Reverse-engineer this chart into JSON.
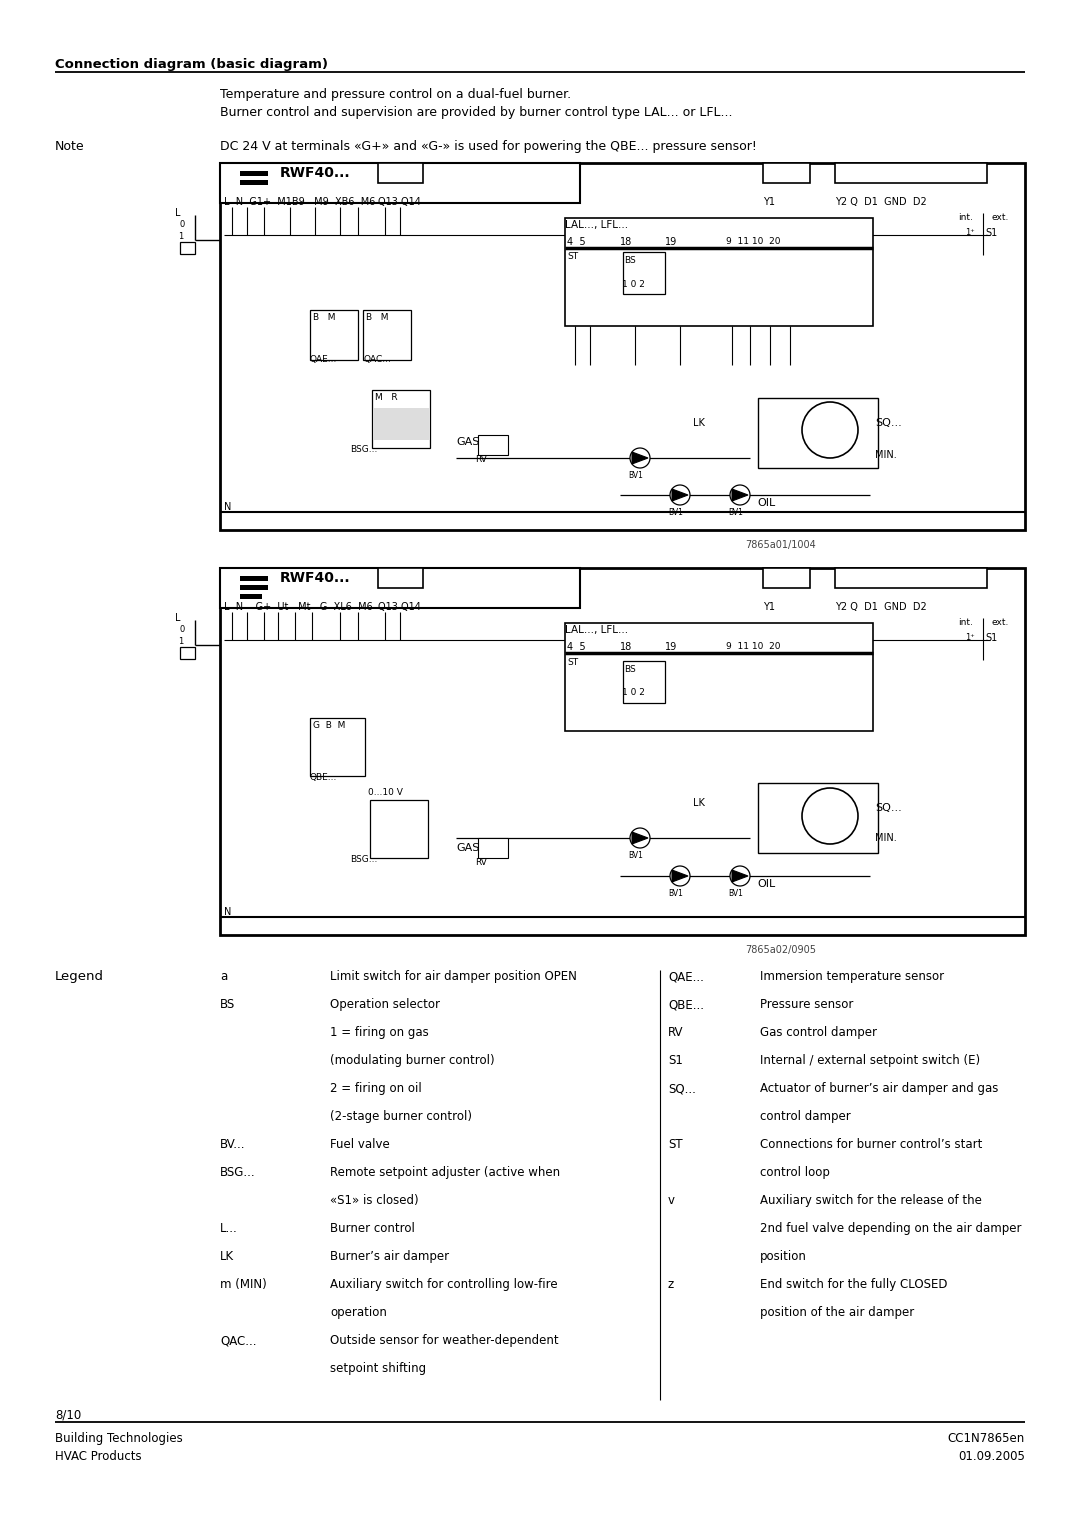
{
  "title": "Connection diagram (basic diagram)",
  "subtitle1": "Temperature and pressure control on a dual-fuel burner.",
  "subtitle2": "Burner control and supervision are provided by burner control type LAL... or LFL...",
  "note_label": "Note",
  "note_text": "DC 24 V at terminals «G+» and «G-» is used for powering the QBE... pressure sensor!",
  "legend_label": "Legend",
  "diagram1_title": "RWF40...",
  "diagram1_ref": "7865a01/1004",
  "diagram2_title": "RWF40...",
  "diagram2_ref": "7865a02/0905",
  "legend_entries_left": [
    [
      "a",
      "Limit switch for air damper position OPEN"
    ],
    [
      "BS",
      "Operation selector"
    ],
    [
      "",
      "1 = firing on gas"
    ],
    [
      "",
      "(modulating burner control)"
    ],
    [
      "",
      "2 = firing on oil"
    ],
    [
      "",
      "(2-stage burner control)"
    ],
    [
      "BV...",
      "Fuel valve"
    ],
    [
      "BSG...",
      "Remote setpoint adjuster (active when"
    ],
    [
      "",
      "«S1» is closed)"
    ],
    [
      "L...",
      "Burner control"
    ],
    [
      "LK",
      "Burner’s air damper"
    ],
    [
      "m (MIN)",
      "Auxiliary switch for controlling low-fire"
    ],
    [
      "",
      "operation"
    ],
    [
      "QAC...",
      "Outside sensor for weather-dependent"
    ],
    [
      "",
      "setpoint shifting"
    ]
  ],
  "legend_entries_right": [
    [
      "QAE...",
      "Immersion temperature sensor"
    ],
    [
      "QBE...",
      "Pressure sensor"
    ],
    [
      "RV",
      "Gas control damper"
    ],
    [
      "S1",
      "Internal / external setpoint switch (E)"
    ],
    [
      "SQ...",
      "Actuator of burner’s air damper and gas"
    ],
    [
      "",
      "control damper"
    ],
    [
      "ST",
      "Connections for burner control’s start"
    ],
    [
      "",
      "control loop"
    ],
    [
      "v",
      "Auxiliary switch for the release of the"
    ],
    [
      "",
      "2nd fuel valve depending on the air damper"
    ],
    [
      "",
      "position"
    ],
    [
      "z",
      "End switch for the fully CLOSED"
    ],
    [
      "",
      "position of the air damper"
    ]
  ],
  "page_number": "8/10",
  "footer_left1": "Building Technologies",
  "footer_left2": "HVAC Products",
  "footer_right1": "CC1N7865en",
  "footer_right2": "01.09.2005"
}
